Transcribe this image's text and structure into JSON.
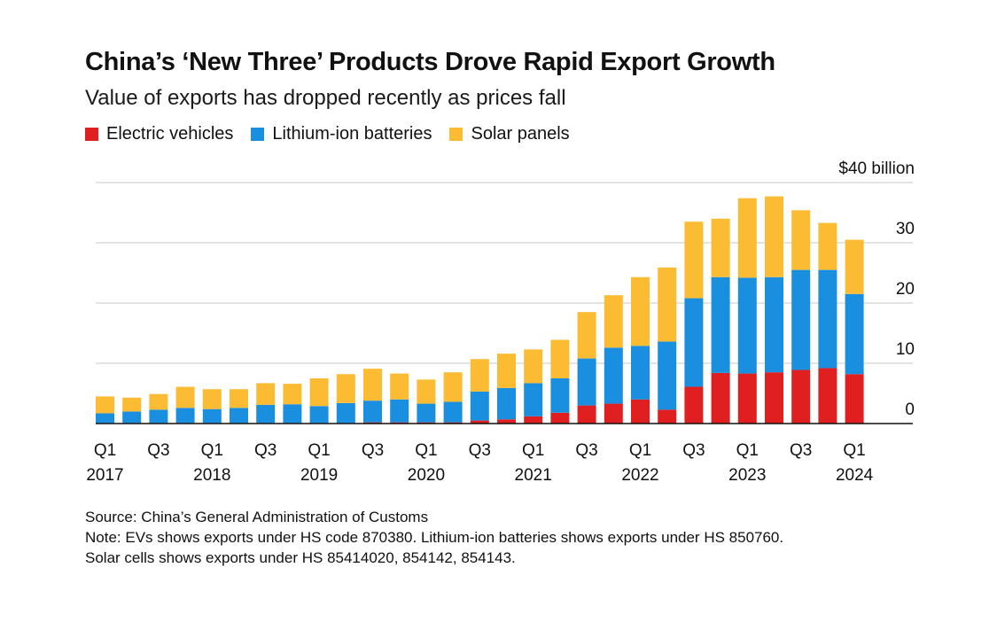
{
  "title": "China’s ‘New Three’ Products Drove Rapid Export Growth",
  "subtitle": "Value of exports has dropped recently as prices fall",
  "legend": [
    {
      "label": "Electric vehicles",
      "color": "#e02020"
    },
    {
      "label": "Lithium-ion batteries",
      "color": "#1a8fe0"
    },
    {
      "label": "Solar panels",
      "color": "#fbbb33"
    }
  ],
  "footer": {
    "source": "Source: China’s General Administration of Customs",
    "note1": "Note: EVs shows exports under HS code 870380. Lithium-ion batteries shows exports under HS 850760.",
    "note2": "Solar cells shows exports under HS 85414020, 854142, 854143."
  },
  "chart_data": {
    "type": "bar",
    "stacked": true,
    "x": [
      "Q1 2017",
      "Q2 2017",
      "Q3 2017",
      "Q4 2017",
      "Q1 2018",
      "Q2 2018",
      "Q3 2018",
      "Q4 2018",
      "Q1 2019",
      "Q2 2019",
      "Q3 2019",
      "Q4 2019",
      "Q1 2020",
      "Q2 2020",
      "Q3 2020",
      "Q4 2020",
      "Q1 2021",
      "Q2 2021",
      "Q3 2021",
      "Q4 2021",
      "Q1 2022",
      "Q2 2022",
      "Q3 2022",
      "Q4 2022",
      "Q1 2023",
      "Q2 2023",
      "Q3 2023",
      "Q4 2023",
      "Q1 2024"
    ],
    "series": [
      {
        "name": "Electric vehicles",
        "values": [
          0.1,
          0.1,
          0.1,
          0.1,
          0.1,
          0.1,
          0.1,
          0.1,
          0.1,
          0.1,
          0.2,
          0.2,
          0.2,
          0.2,
          0.5,
          0.7,
          1.2,
          1.8,
          3.0,
          3.3,
          4.0,
          2.3,
          6.1,
          8.4,
          8.3,
          8.5,
          8.9,
          9.2,
          8.2
        ]
      },
      {
        "name": "Lithium-ion batteries",
        "values": [
          1.6,
          1.9,
          2.2,
          2.5,
          2.3,
          2.5,
          3.0,
          3.1,
          2.8,
          3.3,
          3.6,
          3.8,
          3.1,
          3.4,
          4.8,
          5.2,
          5.5,
          5.7,
          7.8,
          9.3,
          8.9,
          11.3,
          14.7,
          15.9,
          15.9,
          15.8,
          16.6,
          16.3,
          13.3
        ]
      },
      {
        "name": "Solar panels",
        "values": [
          2.8,
          2.3,
          2.6,
          3.5,
          3.3,
          3.1,
          3.6,
          3.4,
          4.6,
          4.8,
          5.3,
          4.3,
          4.0,
          4.9,
          5.4,
          5.7,
          5.6,
          6.4,
          7.7,
          8.7,
          11.4,
          12.3,
          12.7,
          9.7,
          13.2,
          13.4,
          9.9,
          7.8,
          9.0
        ]
      }
    ],
    "x_tick_labels": [
      {
        "i": 0,
        "q": "Q1",
        "year": "2017"
      },
      {
        "i": 2,
        "q": "Q3",
        "year": ""
      },
      {
        "i": 4,
        "q": "Q1",
        "year": "2018"
      },
      {
        "i": 6,
        "q": "Q3",
        "year": ""
      },
      {
        "i": 8,
        "q": "Q1",
        "year": "2019"
      },
      {
        "i": 10,
        "q": "Q3",
        "year": ""
      },
      {
        "i": 12,
        "q": "Q1",
        "year": "2020"
      },
      {
        "i": 14,
        "q": "Q3",
        "year": ""
      },
      {
        "i": 16,
        "q": "Q1",
        "year": "2021"
      },
      {
        "i": 18,
        "q": "Q3",
        "year": ""
      },
      {
        "i": 20,
        "q": "Q1",
        "year": "2022"
      },
      {
        "i": 22,
        "q": "Q3",
        "year": ""
      },
      {
        "i": 24,
        "q": "Q1",
        "year": "2023"
      },
      {
        "i": 26,
        "q": "Q3",
        "year": ""
      },
      {
        "i": 28,
        "q": "Q1",
        "year": "2024"
      }
    ],
    "y_ticks": [
      {
        "value": 0,
        "label": "0"
      },
      {
        "value": 10,
        "label": "10"
      },
      {
        "value": 20,
        "label": "20"
      },
      {
        "value": 30,
        "label": "30"
      },
      {
        "value": 40,
        "label": "$40 billion"
      }
    ],
    "ylim": [
      0,
      40
    ],
    "grid": true,
    "legend_position": "top-left"
  }
}
